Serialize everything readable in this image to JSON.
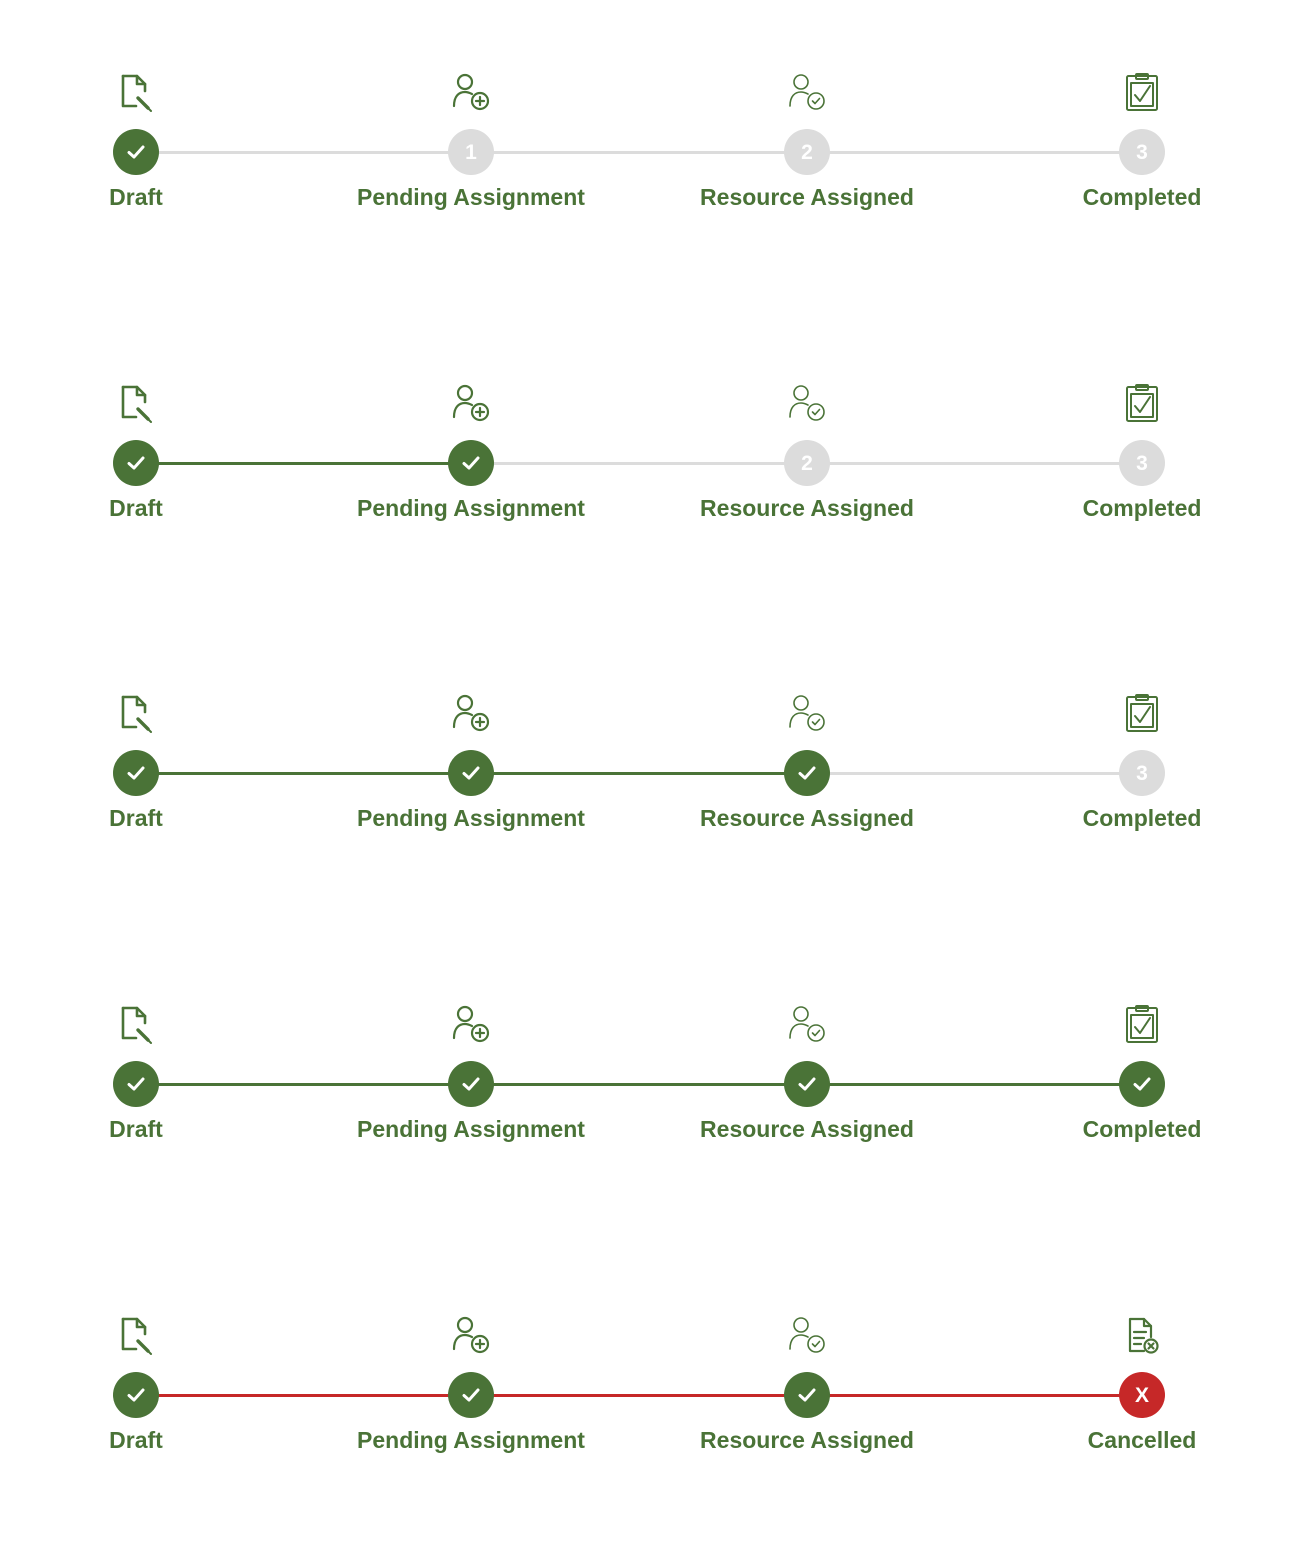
{
  "colors": {
    "primary": "#4a7337",
    "inactive": "#dcdcdc",
    "cancel": "#c62828",
    "text": "#4a7337"
  },
  "icons": {
    "draft": "document-edit-icon",
    "pending": "person-add-icon",
    "assigned": "person-check-icon",
    "completed": "clipboard-check-icon",
    "cancelled": "document-cancel-icon"
  },
  "steppers": [
    {
      "steps": [
        {
          "label": "Draft",
          "status": "done",
          "marker": ""
        },
        {
          "label": "Pending Assignment",
          "status": "pending",
          "marker": "1"
        },
        {
          "label": "Resource Assigned",
          "status": "pending",
          "marker": "2"
        },
        {
          "label": "Completed",
          "status": "pending",
          "marker": "3"
        }
      ]
    },
    {
      "steps": [
        {
          "label": "Draft",
          "status": "done",
          "marker": ""
        },
        {
          "label": "Pending Assignment",
          "status": "done",
          "marker": ""
        },
        {
          "label": "Resource Assigned",
          "status": "pending",
          "marker": "2"
        },
        {
          "label": "Completed",
          "status": "pending",
          "marker": "3"
        }
      ]
    },
    {
      "steps": [
        {
          "label": "Draft",
          "status": "done",
          "marker": ""
        },
        {
          "label": "Pending Assignment",
          "status": "done",
          "marker": ""
        },
        {
          "label": "Resource Assigned",
          "status": "done",
          "marker": ""
        },
        {
          "label": "Completed",
          "status": "pending",
          "marker": "3"
        }
      ]
    },
    {
      "steps": [
        {
          "label": "Draft",
          "status": "done",
          "marker": ""
        },
        {
          "label": "Pending Assignment",
          "status": "done",
          "marker": ""
        },
        {
          "label": "Resource Assigned",
          "status": "done",
          "marker": ""
        },
        {
          "label": "Completed",
          "status": "done",
          "marker": ""
        }
      ]
    },
    {
      "cancelled": true,
      "steps": [
        {
          "label": "Draft",
          "status": "done",
          "marker": ""
        },
        {
          "label": "Pending Assignment",
          "status": "done",
          "marker": ""
        },
        {
          "label": "Resource Assigned",
          "status": "done",
          "marker": ""
        },
        {
          "label": "Cancelled",
          "status": "cancelled",
          "marker": "X"
        }
      ]
    }
  ]
}
